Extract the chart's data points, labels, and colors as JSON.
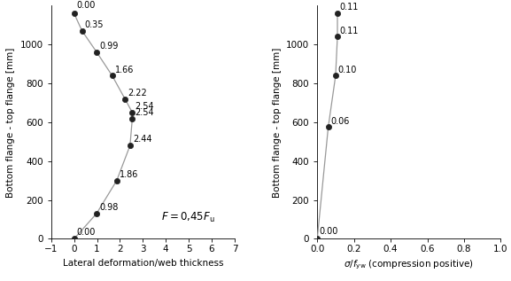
{
  "left": {
    "y_values": [
      0,
      130,
      300,
      480,
      620,
      650,
      720,
      840,
      960,
      1070,
      1160
    ],
    "x_values": [
      0.0,
      0.98,
      1.86,
      2.44,
      2.54,
      2.54,
      2.22,
      1.66,
      0.99,
      0.35,
      0.0
    ],
    "labels": [
      "0.00",
      "0.98",
      "1.86",
      "2.44",
      "2.54",
      "2.54",
      "2.22",
      "1.66",
      "0.99",
      "0.35",
      "0.00"
    ],
    "xlabel": "Lateral deformation/web thickness",
    "ylabel": "Bottom flange - top flange [mm]",
    "xlim": [
      -1,
      7
    ],
    "ylim": [
      0,
      1200
    ],
    "xticks": [
      -1,
      0,
      1,
      2,
      3,
      4,
      5,
      6,
      7
    ],
    "yticks": [
      0,
      200,
      400,
      600,
      800,
      1000
    ]
  },
  "right": {
    "y_values": [
      0,
      575,
      840,
      1040,
      1160
    ],
    "x_values": [
      0.0,
      0.06,
      0.1,
      0.11,
      0.11
    ],
    "labels": [
      "0.00",
      "0.06",
      "0.10",
      "0.11",
      "0.11"
    ],
    "xlim": [
      0,
      1
    ],
    "ylim": [
      0,
      1200
    ],
    "xticks": [
      0,
      0.2,
      0.4,
      0.6,
      0.8,
      1.0
    ],
    "yticks": [
      0,
      200,
      400,
      600,
      800,
      1000
    ]
  },
  "line_color": "#999999",
  "marker_facecolor": "#222222",
  "marker_edgecolor": "#222222",
  "marker_size": 4.5,
  "font_size": 7.5,
  "label_font_size": 7.0,
  "annotation_font_size": 8.5
}
